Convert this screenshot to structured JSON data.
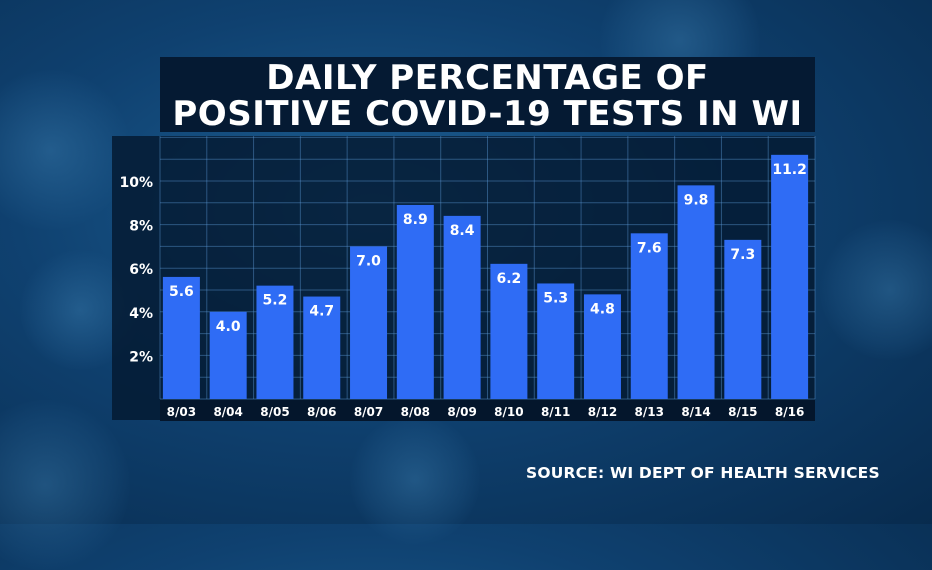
{
  "chart_data": {
    "type": "bar",
    "title_lines": [
      "DAILY PERCENTAGE OF",
      "POSITIVE COVID-19 TESTS IN WI"
    ],
    "categories": [
      "8/03",
      "8/04",
      "8/05",
      "8/06",
      "8/07",
      "8/08",
      "8/09",
      "8/10",
      "8/11",
      "8/12",
      "8/13",
      "8/14",
      "8/15",
      "8/16"
    ],
    "values": [
      5.6,
      4.0,
      5.2,
      4.7,
      7.0,
      8.9,
      8.4,
      6.2,
      5.3,
      4.8,
      7.6,
      9.8,
      7.3,
      11.2
    ],
    "value_labels": [
      "5.6",
      "4.0",
      "5.2",
      "4.7",
      "7.0",
      "8.9",
      "8.4",
      "6.2",
      "5.3",
      "4.8",
      "7.6",
      "9.8",
      "7.3",
      "11.2"
    ],
    "yticks": [
      2,
      4,
      6,
      8,
      10
    ],
    "ytick_labels": [
      "2%",
      "4%",
      "6%",
      "8%",
      "10%"
    ],
    "ylim": [
      0,
      12
    ],
    "grid": true,
    "bar_color": "#2f6cf5"
  },
  "source": "SOURCE: WI DEPT OF HEALTH SERVICES"
}
